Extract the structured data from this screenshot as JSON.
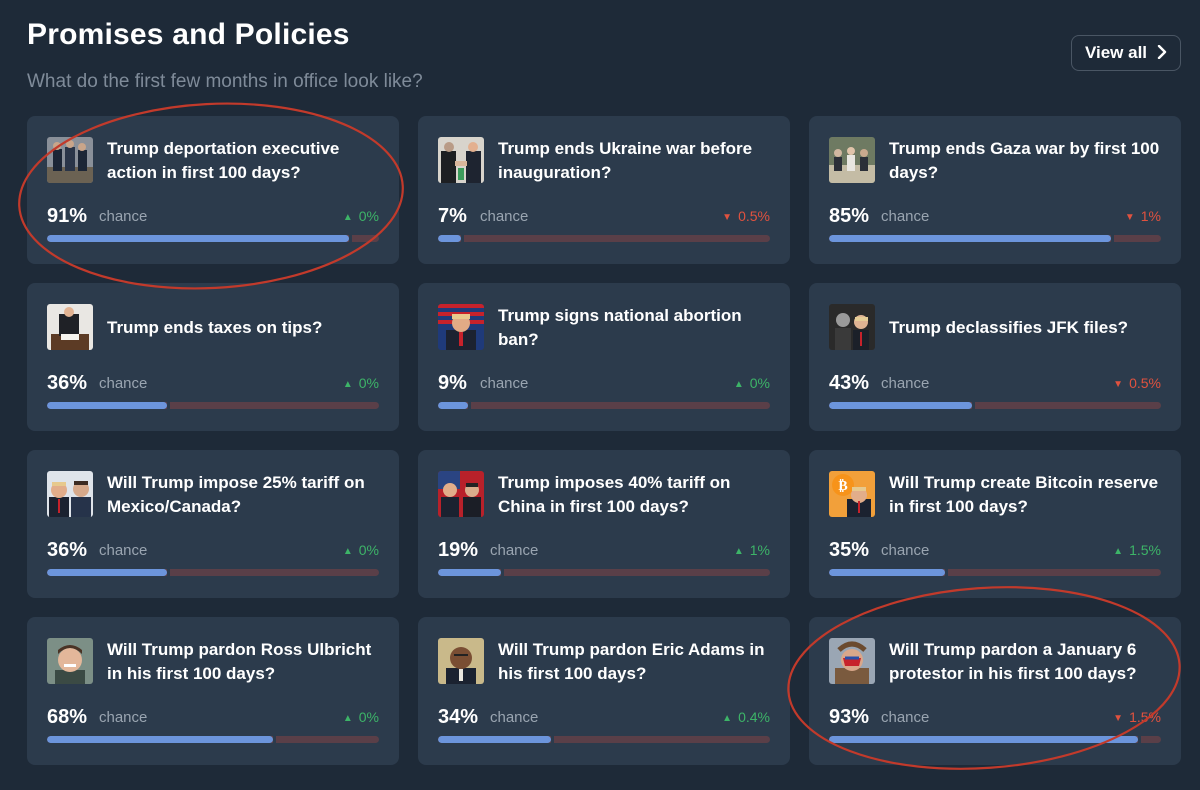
{
  "header": {
    "title": "Promises and Policies",
    "subtitle": "What do the first few months in office look like?",
    "view_all_label": "View all",
    "chevron_icon": "chevron-right-icon"
  },
  "colors": {
    "background": "#1e2a38",
    "card": "#2c3b4c",
    "yes_bar": "#6c95dc",
    "no_bar": "#5a3f48",
    "up": "#3db468",
    "down": "#e0523f",
    "annotation": "#c23a2b"
  },
  "markets": [
    {
      "question": "Trump deportation executive action in first 100 days?",
      "percent_label": "91%",
      "chance_label": "chance",
      "probability": 0.91,
      "delta_label": "0%",
      "direction": "up",
      "icon": "deportation-photo"
    },
    {
      "question": "Trump ends Ukraine war before inauguration?",
      "percent_label": "7%",
      "chance_label": "chance",
      "probability": 0.07,
      "delta_label": "0.5%",
      "direction": "down",
      "icon": "handshake-photo"
    },
    {
      "question": "Trump ends Gaza war by first 100 days?",
      "percent_label": "85%",
      "chance_label": "chance",
      "probability": 0.85,
      "delta_label": "1%",
      "direction": "down",
      "icon": "meeting-photo"
    },
    {
      "question": "Trump ends taxes on tips?",
      "percent_label": "36%",
      "chance_label": "chance",
      "probability": 0.36,
      "delta_label": "0%",
      "direction": "up",
      "icon": "signing-photo"
    },
    {
      "question": "Trump signs national abortion ban?",
      "percent_label": "9%",
      "chance_label": "chance",
      "probability": 0.09,
      "delta_label": "0%",
      "direction": "up",
      "icon": "flag-portrait-photo"
    },
    {
      "question": "Trump declassifies JFK files?",
      "percent_label": "43%",
      "chance_label": "chance",
      "probability": 0.43,
      "delta_label": "0.5%",
      "direction": "down",
      "icon": "jfk-photo"
    },
    {
      "question": "Will Trump impose 25% tariff on Mexico/Canada?",
      "percent_label": "36%",
      "chance_label": "chance",
      "probability": 0.36,
      "delta_label": "0%",
      "direction": "up",
      "icon": "leaders-photo"
    },
    {
      "question": "Trump imposes 40% tariff on China in first 100 days?",
      "percent_label": "19%",
      "chance_label": "chance",
      "probability": 0.19,
      "delta_label": "1%",
      "direction": "up",
      "icon": "china-leaders-photo"
    },
    {
      "question": "Will Trump create Bitcoin reserve in first 100 days?",
      "percent_label": "35%",
      "chance_label": "chance",
      "probability": 0.35,
      "delta_label": "1.5%",
      "direction": "up",
      "icon": "bitcoin-photo"
    },
    {
      "question": "Will Trump pardon Ross Ulbricht in his first 100 days?",
      "percent_label": "68%",
      "chance_label": "chance",
      "probability": 0.68,
      "delta_label": "0%",
      "direction": "up",
      "icon": "ulbricht-photo"
    },
    {
      "question": "Will Trump pardon Eric Adams in his first 100 days?",
      "percent_label": "34%",
      "chance_label": "chance",
      "probability": 0.34,
      "delta_label": "0.4%",
      "direction": "up",
      "icon": "adams-photo"
    },
    {
      "question": "Will Trump pardon a January 6 protestor in his first 100 days?",
      "percent_label": "93%",
      "chance_label": "chance",
      "probability": 0.93,
      "delta_label": "1.5%",
      "direction": "down",
      "icon": "protestor-photo"
    }
  ]
}
